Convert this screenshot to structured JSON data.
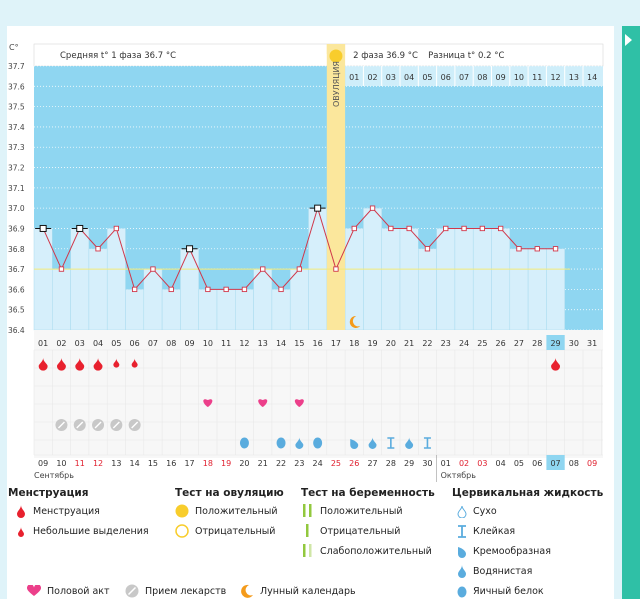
{
  "chart_data": {
    "type": "line",
    "title": "",
    "ylabel": "C°",
    "ylim": [
      36.4,
      37.7
    ],
    "yticks": [
      "37.7",
      "37.6",
      "37.5",
      "37.4",
      "37.3",
      "37.2",
      "37.1",
      "37.0",
      "36.9",
      "36.8",
      "36.7",
      "36.6",
      "36.5",
      "36.4"
    ],
    "cycle_days": [
      "01",
      "02",
      "03",
      "04",
      "05",
      "06",
      "07",
      "08",
      "09",
      "10",
      "11",
      "12",
      "13",
      "14",
      "15",
      "16",
      "17",
      "18",
      "19",
      "20",
      "21",
      "22",
      "23",
      "24",
      "25",
      "26",
      "27",
      "28",
      "29",
      "30",
      "31"
    ],
    "temperatures": [
      36.9,
      36.7,
      36.9,
      36.8,
      36.9,
      36.6,
      36.7,
      36.6,
      36.8,
      36.6,
      36.6,
      36.6,
      36.7,
      36.6,
      36.7,
      37.0,
      36.7,
      36.9,
      37.0,
      36.9,
      36.9,
      36.8,
      36.9,
      36.9,
      36.9,
      36.9,
      36.8,
      36.8,
      36.8
    ],
    "open_markers": [
      1,
      3,
      9,
      16
    ],
    "coverline": 36.7,
    "ovulation_day": 17,
    "ovulation_label": "ОВУЛЯЦИЯ",
    "phase1_avg": "Средняя t° 1 фаза 36.7 °C",
    "phase2_avg": "2 фаза 36.9 °C",
    "diff": "Разница t° 0.2 °C",
    "luteal_days": [
      "01",
      "02",
      "03",
      "04",
      "05",
      "06",
      "07",
      "08",
      "09",
      "10",
      "11",
      "12",
      "13",
      "14"
    ],
    "highlight_day": "29",
    "menstruation_days": [
      1,
      2,
      3,
      4
    ],
    "spotting_days": [
      5,
      6
    ],
    "late_menstruation_day": 29,
    "intercourse_days": [
      10,
      13,
      15
    ],
    "medication_days": [
      2,
      3,
      4,
      5,
      6
    ],
    "mucus": [
      {
        "day": 12,
        "type": "egg_white"
      },
      {
        "day": 14,
        "type": "egg_white"
      },
      {
        "day": 15,
        "type": "watery"
      },
      {
        "day": 16,
        "type": "egg_white"
      },
      {
        "day": 18,
        "type": "creamy"
      },
      {
        "day": 19,
        "type": "watery"
      },
      {
        "day": 20,
        "type": "sticky"
      },
      {
        "day": 21,
        "type": "watery"
      },
      {
        "day": 22,
        "type": "sticky"
      }
    ],
    "moon_day": 18,
    "calendar_dates": [
      {
        "d": "09",
        "w": false
      },
      {
        "d": "10",
        "w": false
      },
      {
        "d": "11",
        "w": true
      },
      {
        "d": "12",
        "w": true
      },
      {
        "d": "13",
        "w": false
      },
      {
        "d": "14",
        "w": false
      },
      {
        "d": "15",
        "w": false
      },
      {
        "d": "16",
        "w": false
      },
      {
        "d": "17",
        "w": false
      },
      {
        "d": "18",
        "w": true
      },
      {
        "d": "19",
        "w": true
      },
      {
        "d": "20",
        "w": false
      },
      {
        "d": "21",
        "w": false
      },
      {
        "d": "22",
        "w": false
      },
      {
        "d": "23",
        "w": false
      },
      {
        "d": "24",
        "w": false
      },
      {
        "d": "25",
        "w": true
      },
      {
        "d": "26",
        "w": true
      },
      {
        "d": "27",
        "w": false
      },
      {
        "d": "28",
        "w": false
      },
      {
        "d": "29",
        "w": false
      },
      {
        "d": "30",
        "w": false
      },
      {
        "d": "01",
        "w": false
      },
      {
        "d": "02",
        "w": true
      },
      {
        "d": "03",
        "w": true
      },
      {
        "d": "04",
        "w": false
      },
      {
        "d": "05",
        "w": false
      },
      {
        "d": "06",
        "w": false
      },
      {
        "d": "07",
        "w": false
      },
      {
        "d": "08",
        "w": false
      },
      {
        "d": "09",
        "w": true
      }
    ],
    "today_index": 28,
    "month1": "Сентябрь",
    "month2": "Октябрь"
  },
  "colors": {
    "blue": "#8fd6f1",
    "column": "#d6effb",
    "line": "#d0384b",
    "ovulation": "#fbe79c",
    "drop": "#e8212e",
    "heart": "#ec3f8a",
    "mucus": "#5aacde",
    "moon": "#f49b1b",
    "yes": "#f8cd2c",
    "green": "#92c83e"
  },
  "legend": {
    "menstruation": {
      "title": "Менструация",
      "heavy": "Менструация",
      "light": "Небольшие выделения"
    },
    "ovulation_test": {
      "title": "Тест на овуляцию",
      "positive": "Положительный",
      "negative": "Отрицательный"
    },
    "pregnancy_test": {
      "title": "Тест на беременность",
      "positive": "Положительный",
      "negative": "Отрицательный",
      "weak": "Слабоположительный"
    },
    "cervical": {
      "title": "Цервикальная жидкость",
      "dry": "Сухо",
      "sticky": "Клейкая",
      "creamy": "Кремообразная",
      "watery": "Водянистая",
      "egg": "Яичный белок"
    },
    "bottom": {
      "intercourse": "Половой акт",
      "medication": "Прием лекарств",
      "lunar": "Лунный календарь"
    }
  }
}
